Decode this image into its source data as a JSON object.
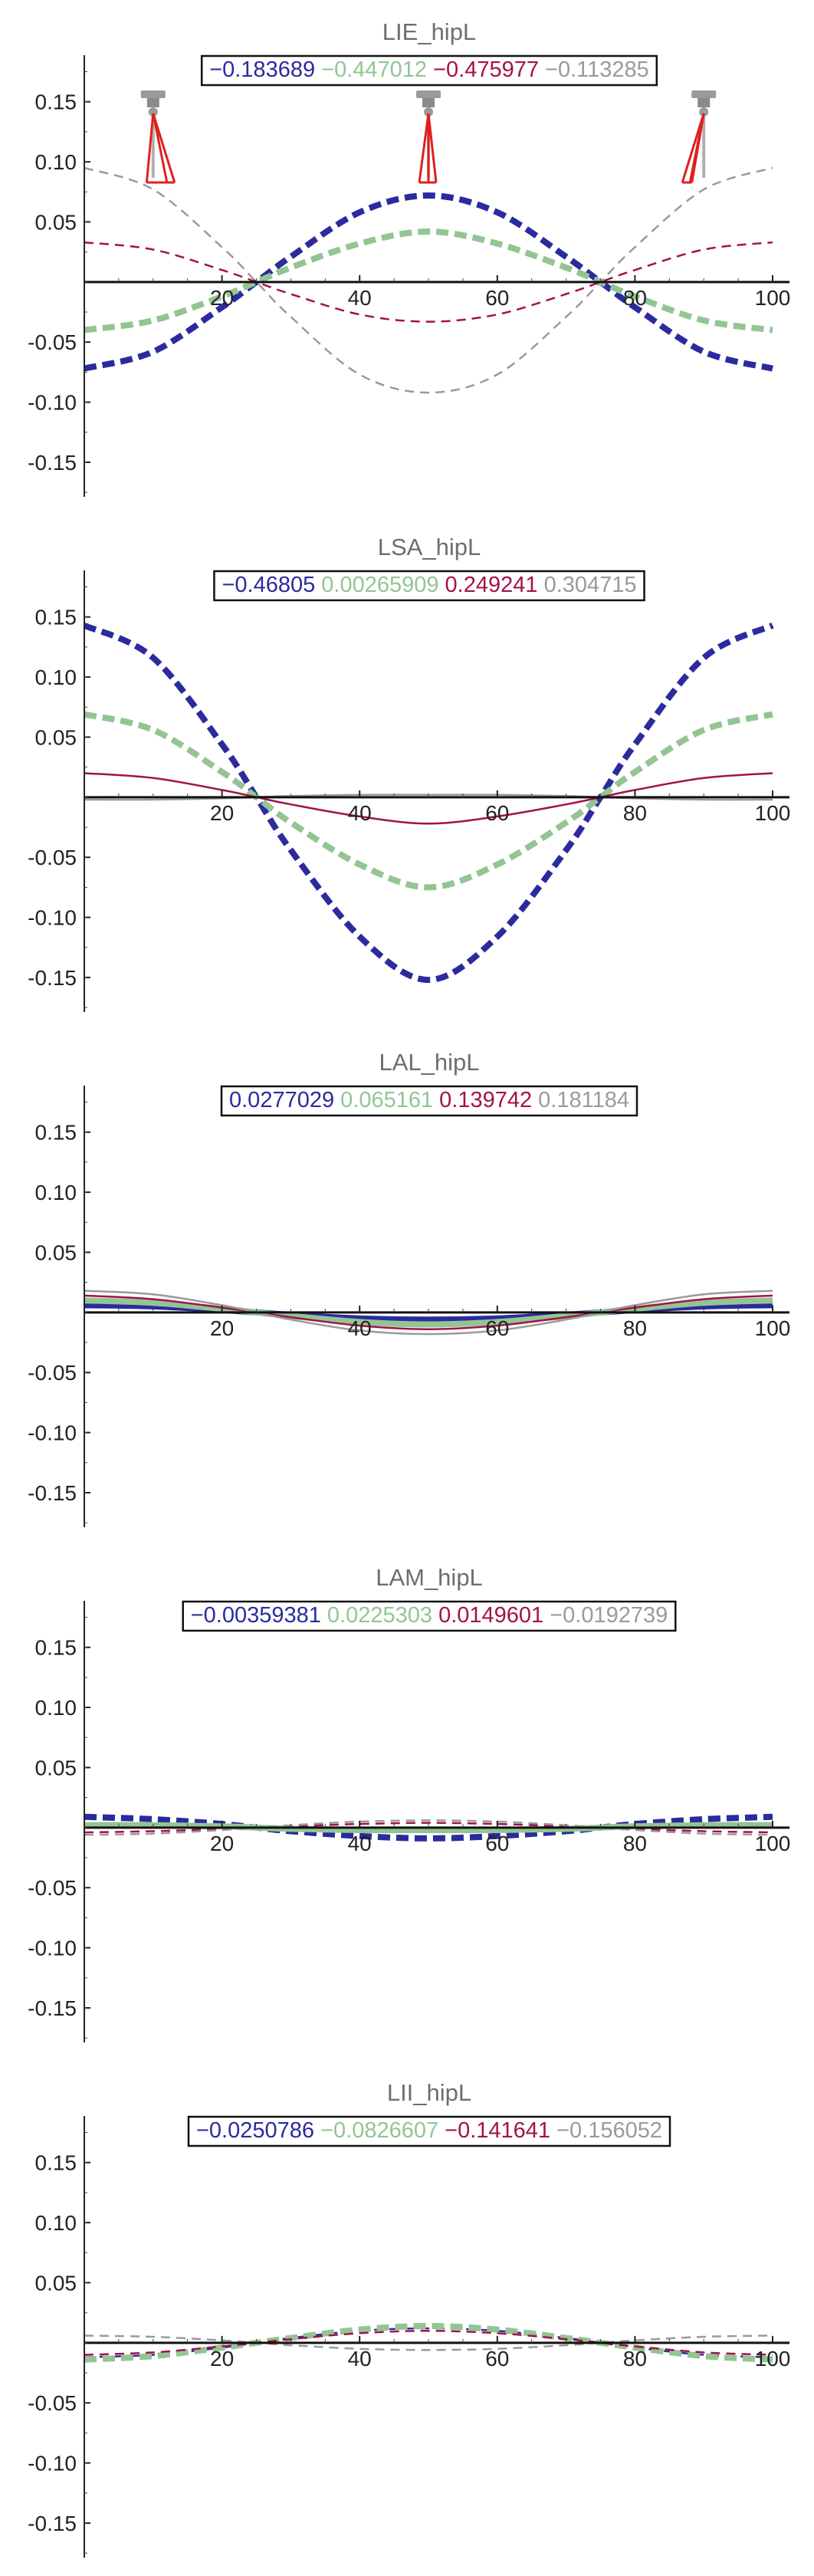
{
  "chart_data": [
    {
      "type": "line",
      "title": "LIE_hipL",
      "legend_placement": "top-center",
      "legend_box": true,
      "xlim": [
        0,
        100
      ],
      "ylim": [
        -0.18,
        0.19
      ],
      "x_ticks": [
        "20",
        "40",
        "60",
        "80",
        "100"
      ],
      "y_ticks": [
        "0.15",
        "0.10",
        "0.05",
        "-0.05",
        "-0.10",
        "-0.15"
      ],
      "y_tick_values": [
        0.15,
        0.1,
        0.05,
        -0.05,
        -0.1,
        -0.15
      ],
      "has_glyphs": true,
      "glyph_x": [
        10,
        50,
        90
      ],
      "series": [
        {
          "name": "−0.183689",
          "color": "#2b2b9e",
          "dash": true,
          "weight": "heavy",
          "x": [
            0,
            10,
            20,
            25,
            30,
            40,
            50,
            60,
            70,
            75,
            80,
            90,
            100
          ],
          "y": [
            -0.072,
            -0.058,
            -0.021,
            0.0,
            0.021,
            0.058,
            0.072,
            0.058,
            0.021,
            0.0,
            -0.021,
            -0.058,
            -0.072
          ]
        },
        {
          "name": "−0.447012",
          "color": "#93c593",
          "dash": true,
          "weight": "heavy",
          "x": [
            0,
            10,
            20,
            25,
            30,
            40,
            50,
            60,
            70,
            75,
            80,
            90,
            100
          ],
          "y": [
            -0.04,
            -0.032,
            -0.012,
            0.0,
            0.012,
            0.032,
            0.042,
            0.032,
            0.012,
            0.0,
            -0.012,
            -0.032,
            -0.04
          ]
        },
        {
          "name": "−0.475977",
          "color": "#a3124a",
          "dash": true,
          "weight": "thin",
          "x": [
            0,
            10,
            20,
            25,
            30,
            40,
            50,
            60,
            70,
            75,
            80,
            90,
            100
          ],
          "y": [
            0.033,
            0.027,
            0.01,
            0.0,
            -0.01,
            -0.027,
            -0.033,
            -0.027,
            -0.01,
            0.0,
            0.01,
            0.027,
            0.033
          ]
        },
        {
          "name": "−0.113285",
          "color": "#9a9a9a",
          "dash": true,
          "weight": "thin",
          "x": [
            0,
            10,
            20,
            25,
            30,
            40,
            50,
            60,
            70,
            75,
            80,
            90,
            100
          ],
          "y": [
            0.095,
            0.077,
            0.029,
            0.0,
            -0.029,
            -0.077,
            -0.092,
            -0.077,
            -0.029,
            0.0,
            0.029,
            0.077,
            0.095
          ]
        }
      ]
    },
    {
      "type": "line",
      "title": "LSA_hipL",
      "legend_placement": "top-center",
      "legend_box": true,
      "xlim": [
        0,
        100
      ],
      "ylim": [
        -0.18,
        0.19
      ],
      "x_ticks": [
        "20",
        "40",
        "60",
        "80",
        "100"
      ],
      "y_ticks": [
        "0.15",
        "0.10",
        "0.05",
        "-0.05",
        "-0.10",
        "-0.15"
      ],
      "y_tick_values": [
        0.15,
        0.1,
        0.05,
        -0.05,
        -0.1,
        -0.15
      ],
      "has_glyphs": false,
      "series": [
        {
          "name": "−0.46805",
          "color": "#2b2b9e",
          "dash": true,
          "weight": "heavy",
          "x": [
            0,
            10,
            20,
            25,
            30,
            40,
            50,
            60,
            70,
            75,
            80,
            90,
            100
          ],
          "y": [
            0.143,
            0.116,
            0.044,
            0.0,
            -0.044,
            -0.116,
            -0.152,
            -0.116,
            -0.044,
            0.0,
            0.044,
            0.116,
            0.143
          ]
        },
        {
          "name": "0.00265909",
          "color": "#93c593",
          "dash": true,
          "weight": "heavy",
          "x": [
            0,
            10,
            20,
            25,
            30,
            40,
            50,
            60,
            70,
            75,
            80,
            90,
            100
          ],
          "y": [
            0.069,
            0.056,
            0.021,
            0.0,
            -0.021,
            -0.056,
            -0.075,
            -0.056,
            -0.021,
            0.0,
            0.021,
            0.056,
            0.069
          ]
        },
        {
          "name": "0.249241",
          "color": "#a3124a",
          "dash": false,
          "weight": "thin",
          "x": [
            0,
            10,
            20,
            25,
            30,
            40,
            50,
            60,
            70,
            75,
            80,
            90,
            100
          ],
          "y": [
            0.02,
            0.016,
            0.006,
            0.0,
            -0.006,
            -0.016,
            -0.022,
            -0.016,
            -0.006,
            0.0,
            0.006,
            0.016,
            0.02
          ]
        },
        {
          "name": "0.304715",
          "color": "#9a9a9a",
          "dash": false,
          "weight": "thin",
          "x": [
            0,
            10,
            20,
            25,
            30,
            40,
            50,
            60,
            70,
            75,
            80,
            90,
            100
          ],
          "y": [
            -0.002,
            -0.002,
            -0.001,
            0.0,
            0.001,
            0.002,
            0.002,
            0.002,
            0.001,
            0.0,
            -0.001,
            -0.002,
            -0.002
          ]
        }
      ]
    },
    {
      "type": "line",
      "title": "LAL_hipL",
      "legend_placement": "top-center",
      "legend_box": true,
      "xlim": [
        0,
        100
      ],
      "ylim": [
        -0.18,
        0.19
      ],
      "x_ticks": [
        "20",
        "40",
        "60",
        "80",
        "100"
      ],
      "y_ticks": [
        "0.15",
        "0.10",
        "0.05",
        "-0.05",
        "-0.10",
        "-0.15"
      ],
      "y_tick_values": [
        0.15,
        0.1,
        0.05,
        -0.05,
        -0.1,
        -0.15
      ],
      "has_glyphs": false,
      "series": [
        {
          "name": "0.0277029",
          "color": "#2b2b9e",
          "dash": false,
          "weight": "heavy",
          "x": [
            0,
            10,
            20,
            25,
            30,
            40,
            50,
            60,
            70,
            75,
            80,
            90,
            100
          ],
          "y": [
            0.006,
            0.005,
            0.002,
            0.0,
            -0.002,
            -0.005,
            -0.006,
            -0.005,
            -0.002,
            0.0,
            0.002,
            0.005,
            0.006
          ]
        },
        {
          "name": "0.065161",
          "color": "#93c593",
          "dash": false,
          "weight": "heavy",
          "x": [
            0,
            10,
            20,
            25,
            30,
            40,
            50,
            60,
            70,
            75,
            80,
            90,
            100
          ],
          "y": [
            0.01,
            0.008,
            0.003,
            0.0,
            -0.003,
            -0.008,
            -0.01,
            -0.008,
            -0.003,
            0.0,
            0.003,
            0.008,
            0.01
          ]
        },
        {
          "name": "0.139742",
          "color": "#a3124a",
          "dash": false,
          "weight": "thin",
          "x": [
            0,
            10,
            20,
            25,
            30,
            40,
            50,
            60,
            70,
            75,
            80,
            90,
            100
          ],
          "y": [
            0.014,
            0.011,
            0.004,
            0.0,
            -0.004,
            -0.011,
            -0.014,
            -0.011,
            -0.004,
            0.0,
            0.004,
            0.011,
            0.014
          ]
        },
        {
          "name": "0.181184",
          "color": "#9a9a9a",
          "dash": false,
          "weight": "thin",
          "x": [
            0,
            10,
            20,
            25,
            30,
            40,
            50,
            60,
            70,
            75,
            80,
            90,
            100
          ],
          "y": [
            0.018,
            0.015,
            0.006,
            0.0,
            -0.006,
            -0.015,
            -0.018,
            -0.015,
            -0.006,
            0.0,
            0.006,
            0.015,
            0.018
          ]
        }
      ]
    },
    {
      "type": "line",
      "title": "LAM_hipL",
      "legend_placement": "top-center",
      "legend_box": true,
      "xlim": [
        0,
        100
      ],
      "ylim": [
        -0.18,
        0.19
      ],
      "x_ticks": [
        "20",
        "40",
        "60",
        "80",
        "100"
      ],
      "y_ticks": [
        "0.15",
        "0.10",
        "0.05",
        "-0.05",
        "-0.10",
        "-0.15"
      ],
      "y_tick_values": [
        0.15,
        0.1,
        0.05,
        -0.05,
        -0.1,
        -0.15
      ],
      "has_glyphs": false,
      "series": [
        {
          "name": "−0.00359381",
          "color": "#2b2b9e",
          "dash": true,
          "weight": "heavy",
          "x": [
            0,
            10,
            20,
            25,
            30,
            40,
            50,
            60,
            70,
            75,
            80,
            90,
            100
          ],
          "y": [
            0.009,
            0.007,
            0.003,
            0.0,
            -0.003,
            -0.007,
            -0.009,
            -0.007,
            -0.003,
            0.0,
            0.003,
            0.007,
            0.009
          ]
        },
        {
          "name": "0.0225303",
          "color": "#93c593",
          "dash": false,
          "weight": "heavy",
          "x": [
            0,
            10,
            20,
            25,
            30,
            40,
            50,
            60,
            70,
            75,
            80,
            90,
            100
          ],
          "y": [
            0.002,
            0.002,
            0.001,
            0.0,
            -0.001,
            -0.002,
            -0.002,
            -0.002,
            -0.001,
            0.0,
            0.001,
            0.002,
            0.002
          ]
        },
        {
          "name": "0.0149601",
          "color": "#a3124a",
          "dash": true,
          "weight": "thin",
          "x": [
            0,
            10,
            20,
            25,
            30,
            40,
            50,
            60,
            70,
            75,
            80,
            90,
            100
          ],
          "y": [
            -0.004,
            -0.003,
            -0.001,
            0.0,
            0.001,
            0.003,
            0.004,
            0.003,
            0.001,
            0.0,
            -0.001,
            -0.003,
            -0.004
          ]
        },
        {
          "name": "−0.0192739",
          "color": "#9a9a9a",
          "dash": true,
          "weight": "thin",
          "x": [
            0,
            10,
            20,
            25,
            30,
            40,
            50,
            60,
            70,
            75,
            80,
            90,
            100
          ],
          "y": [
            -0.006,
            -0.005,
            -0.002,
            0.0,
            0.002,
            0.005,
            0.006,
            0.005,
            0.002,
            0.0,
            -0.002,
            -0.005,
            -0.006
          ]
        }
      ]
    },
    {
      "type": "line",
      "title": "LII_hipL",
      "legend_placement": "top-center",
      "legend_box": true,
      "xlim": [
        0,
        100
      ],
      "ylim": [
        -0.18,
        0.19
      ],
      "x_ticks": [
        "20",
        "40",
        "60",
        "80",
        "100"
      ],
      "y_ticks": [
        "0.15",
        "0.10",
        "0.05",
        "-0.05",
        "-0.10",
        "-0.15"
      ],
      "y_tick_values": [
        0.15,
        0.1,
        0.05,
        -0.05,
        -0.1,
        -0.15
      ],
      "has_glyphs": false,
      "series": [
        {
          "name": "−0.0250786",
          "color": "#2b2b9e",
          "dash": true,
          "weight": "thin",
          "x": [
            0,
            10,
            20,
            25,
            30,
            40,
            50,
            60,
            70,
            75,
            80,
            90,
            100
          ],
          "y": [
            -0.012,
            -0.01,
            -0.004,
            0.0,
            0.004,
            0.01,
            0.012,
            0.01,
            0.004,
            0.0,
            -0.004,
            -0.01,
            -0.012
          ]
        },
        {
          "name": "−0.0826607",
          "color": "#93c593",
          "dash": true,
          "weight": "heavy",
          "x": [
            0,
            10,
            20,
            25,
            30,
            40,
            50,
            60,
            70,
            75,
            80,
            90,
            100
          ],
          "y": [
            -0.014,
            -0.011,
            -0.004,
            0.0,
            0.004,
            0.011,
            0.014,
            0.011,
            0.004,
            0.0,
            -0.004,
            -0.011,
            -0.014
          ]
        },
        {
          "name": "−0.141641",
          "color": "#a3124a",
          "dash": true,
          "weight": "thin",
          "x": [
            0,
            10,
            20,
            25,
            30,
            40,
            50,
            60,
            70,
            75,
            80,
            90,
            100
          ],
          "y": [
            -0.01,
            -0.008,
            -0.003,
            0.0,
            0.003,
            0.008,
            0.01,
            0.008,
            0.003,
            0.0,
            -0.003,
            -0.008,
            -0.01
          ]
        },
        {
          "name": "−0.156052",
          "color": "#9a9a9a",
          "dash": true,
          "weight": "thin",
          "x": [
            0,
            10,
            20,
            25,
            30,
            40,
            50,
            60,
            70,
            75,
            80,
            90,
            100
          ],
          "y": [
            0.006,
            0.005,
            0.002,
            0.0,
            -0.002,
            -0.005,
            -0.006,
            -0.005,
            -0.002,
            0.0,
            0.002,
            0.005,
            0.006
          ]
        }
      ]
    }
  ]
}
